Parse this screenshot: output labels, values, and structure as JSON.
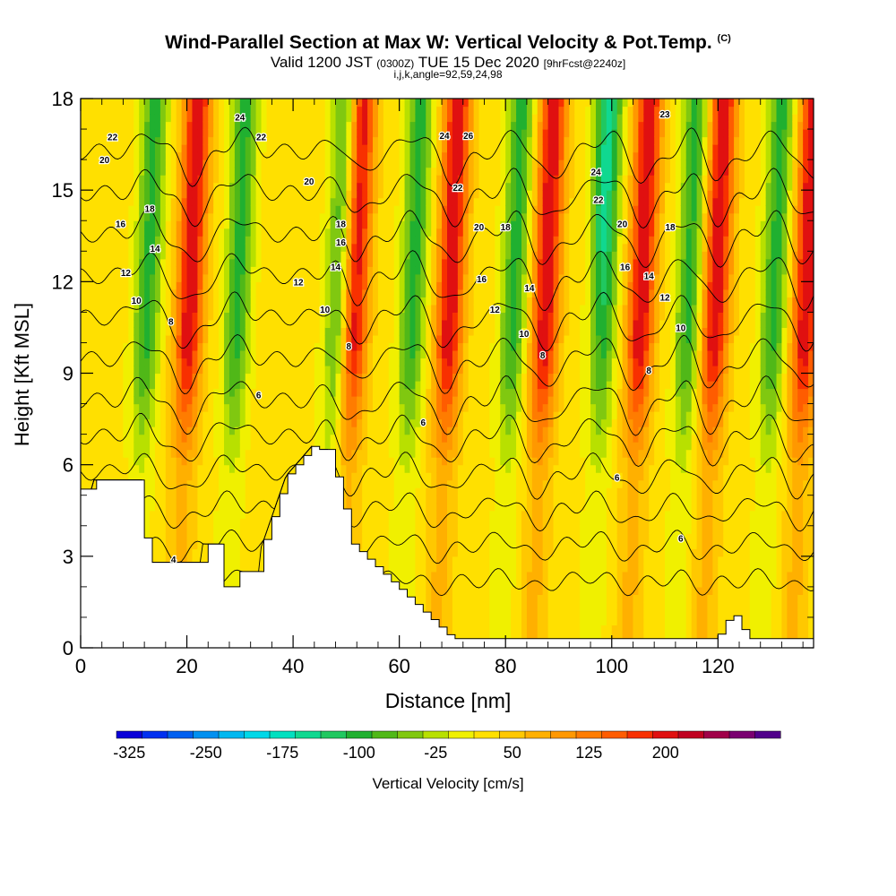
{
  "chart_data": {
    "type": "heatmap",
    "title": "Wind-Parallel Section at Max W: Vertical Velocity & Pot.Temp.",
    "copyright_mark": "(C)",
    "subtitle": {
      "valid": "Valid 1200 JST",
      "utc": "(0300Z)",
      "date": "TUE 15 Dec 2020",
      "forecast": "[9hrFcst@2240z]"
    },
    "indices_line": "i,j,k,angle=92,59,24,98",
    "xlabel": "Distance [nm]",
    "ylabel": "Height [Kft MSL]",
    "xlim": [
      0,
      138
    ],
    "ylim": [
      0,
      18
    ],
    "x_ticks": [
      "0",
      "20",
      "40",
      "60",
      "80",
      "100",
      "120"
    ],
    "y_ticks": [
      "0",
      "3",
      "6",
      "9",
      "12",
      "15",
      "18"
    ],
    "colorbar": {
      "label": "Vertical Velocity [cm/s]",
      "tick_labels": [
        "-325",
        "-250",
        "-175",
        "-100",
        "-25",
        "50",
        "125",
        "200"
      ],
      "colors": [
        "#0a00d8",
        "#0030f0",
        "#0060f0",
        "#0090f0",
        "#00b8f0",
        "#00d8e8",
        "#00e0c0",
        "#10d890",
        "#20c860",
        "#20b030",
        "#50b818",
        "#80c810",
        "#b8e000",
        "#f0f000",
        "#ffe000",
        "#ffc800",
        "#ffb000",
        "#ff9800",
        "#ff7c00",
        "#ff5c00",
        "#f83000",
        "#e01010",
        "#c00020",
        "#a00048",
        "#7a0070",
        "#50008a"
      ]
    },
    "updraft_axes_x": [
      18,
      49,
      67,
      85,
      103,
      117,
      134
    ],
    "downdraft_axes_x": [
      10,
      27,
      46,
      60,
      79,
      96,
      112,
      128
    ],
    "theta_isentropes": [
      4,
      6,
      8,
      10,
      12,
      14,
      16,
      18,
      20,
      22,
      24,
      26
    ],
    "contour_labels": [
      {
        "text": "22",
        "x": 6,
        "y": 16.75
      },
      {
        "text": "20",
        "x": 4.5,
        "y": 16.0
      },
      {
        "text": "24",
        "x": 30,
        "y": 17.4
      },
      {
        "text": "22",
        "x": 34,
        "y": 16.75
      },
      {
        "text": "18",
        "x": 13,
        "y": 14.4
      },
      {
        "text": "16",
        "x": 7.5,
        "y": 13.9
      },
      {
        "text": "14",
        "x": 14,
        "y": 13.1
      },
      {
        "text": "12",
        "x": 8.5,
        "y": 12.3
      },
      {
        "text": "10",
        "x": 10.5,
        "y": 11.4
      },
      {
        "text": "8",
        "x": 17,
        "y": 10.7
      },
      {
        "text": "20",
        "x": 43,
        "y": 15.3
      },
      {
        "text": "12",
        "x": 41,
        "y": 12.0
      },
      {
        "text": "10",
        "x": 46,
        "y": 11.1
      },
      {
        "text": "18",
        "x": 49,
        "y": 13.9
      },
      {
        "text": "16",
        "x": 49,
        "y": 13.3
      },
      {
        "text": "14",
        "x": 48,
        "y": 12.5
      },
      {
        "text": "8",
        "x": 50.5,
        "y": 9.9
      },
      {
        "text": "6",
        "x": 33.5,
        "y": 8.3
      },
      {
        "text": "24",
        "x": 68.5,
        "y": 16.8
      },
      {
        "text": "26",
        "x": 73,
        "y": 16.8
      },
      {
        "text": "22",
        "x": 71,
        "y": 15.1
      },
      {
        "text": "20",
        "x": 75,
        "y": 13.8
      },
      {
        "text": "18",
        "x": 80,
        "y": 13.8
      },
      {
        "text": "16",
        "x": 75.5,
        "y": 12.1
      },
      {
        "text": "12",
        "x": 78,
        "y": 11.1
      },
      {
        "text": "14",
        "x": 84.5,
        "y": 11.8
      },
      {
        "text": "10",
        "x": 83.5,
        "y": 10.3
      },
      {
        "text": "8",
        "x": 87,
        "y": 9.6
      },
      {
        "text": "6",
        "x": 64.5,
        "y": 7.4
      },
      {
        "text": "24",
        "x": 97,
        "y": 15.6
      },
      {
        "text": "22",
        "x": 97.5,
        "y": 14.7
      },
      {
        "text": "20",
        "x": 102,
        "y": 13.9
      },
      {
        "text": "18",
        "x": 111,
        "y": 13.8
      },
      {
        "text": "16",
        "x": 102.5,
        "y": 12.5
      },
      {
        "text": "14",
        "x": 107,
        "y": 12.2
      },
      {
        "text": "12",
        "x": 110,
        "y": 11.5
      },
      {
        "text": "10",
        "x": 113,
        "y": 10.5
      },
      {
        "text": "8",
        "x": 107,
        "y": 9.1
      },
      {
        "text": "6",
        "x": 101,
        "y": 5.6
      },
      {
        "text": "6",
        "x": 113,
        "y": 3.6
      },
      {
        "text": "4",
        "x": 17.5,
        "y": 2.9
      },
      {
        "text": "23",
        "x": 110,
        "y": 17.5
      }
    ],
    "grid": false,
    "legend": "none"
  }
}
